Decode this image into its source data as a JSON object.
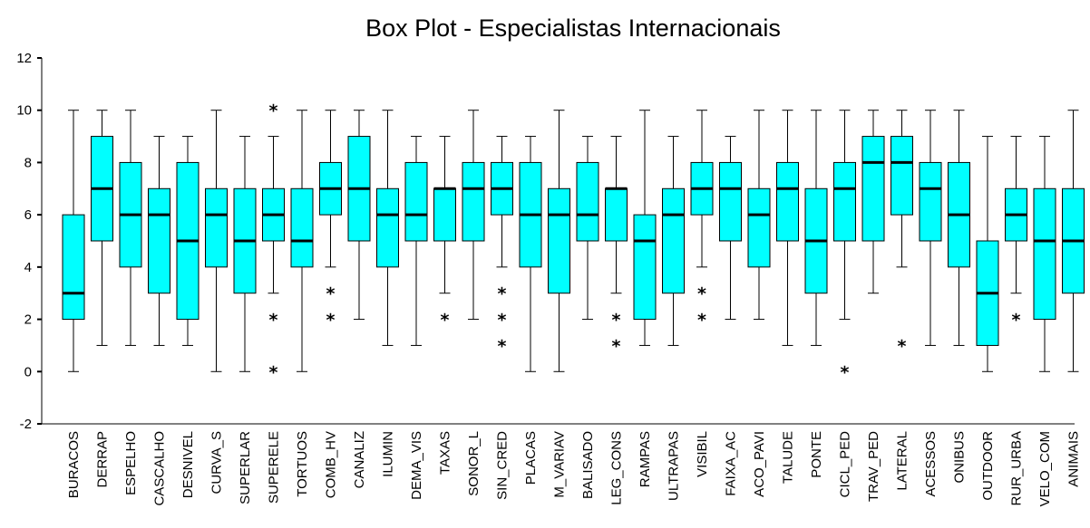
{
  "chart_data": {
    "type": "box",
    "title": "Box Plot - Especialistas Internacionais",
    "xlabel": "",
    "ylabel": "",
    "ylim": [
      -2,
      12
    ],
    "yticks": [
      -2,
      0,
      2,
      4,
      6,
      8,
      10,
      12
    ],
    "grid": false,
    "legend": "none",
    "box_color": "#00ffff",
    "outlier_marker": "*",
    "categories": [
      "BURACOS",
      "DERRAP",
      "ESPELHO",
      "CASCALHO",
      "DESNIVEL",
      "CURVA_S",
      "SUPERLAR",
      "SUPERELE",
      "TORTUOS",
      "COMB_HV",
      "CANALIZ",
      "ILUMIN",
      "DEMA_VIS",
      "TAXAS",
      "SONOR_L",
      "SIN_CRED",
      "PLACAS",
      "M_VARIAV",
      "BALISADO",
      "LEG_CONS",
      "RAMPAS",
      "ULTRAPAS",
      "VISIBIL",
      "FAIXA_AC",
      "ACO_PAVI",
      "TALUDE",
      "PONTE",
      "CICL_PED",
      "TRAV_PED",
      "LATERAL",
      "ACESSOS",
      "ONIBUS",
      "OUTDOOR",
      "RUR_URBA",
      "VELO_COM",
      "ANIMAIS"
    ],
    "boxes": [
      {
        "min": 0,
        "q1": 2,
        "median": 3,
        "q3": 6,
        "max": 10,
        "outliers": []
      },
      {
        "min": 1,
        "q1": 5,
        "median": 7,
        "q3": 9,
        "max": 10,
        "outliers": []
      },
      {
        "min": 1,
        "q1": 4,
        "median": 6,
        "q3": 8,
        "max": 10,
        "outliers": []
      },
      {
        "min": 1,
        "q1": 3,
        "median": 6,
        "q3": 7,
        "max": 9,
        "outliers": []
      },
      {
        "min": 1,
        "q1": 2,
        "median": 5,
        "q3": 8,
        "max": 9,
        "outliers": []
      },
      {
        "min": 0,
        "q1": 4,
        "median": 6,
        "q3": 7,
        "max": 10,
        "outliers": []
      },
      {
        "min": 0,
        "q1": 3,
        "median": 5,
        "q3": 7,
        "max": 9,
        "outliers": []
      },
      {
        "min": 3,
        "q1": 5,
        "median": 6,
        "q3": 7,
        "max": 9,
        "outliers": [
          10,
          2,
          0
        ]
      },
      {
        "min": 0,
        "q1": 4,
        "median": 5,
        "q3": 7,
        "max": 10,
        "outliers": []
      },
      {
        "min": 4,
        "q1": 6,
        "median": 7,
        "q3": 8,
        "max": 10,
        "outliers": [
          3,
          2
        ]
      },
      {
        "min": 2,
        "q1": 5,
        "median": 7,
        "q3": 9,
        "max": 10,
        "outliers": []
      },
      {
        "min": 1,
        "q1": 4,
        "median": 6,
        "q3": 7,
        "max": 10,
        "outliers": []
      },
      {
        "min": 1,
        "q1": 5,
        "median": 6,
        "q3": 8,
        "max": 9,
        "outliers": []
      },
      {
        "min": 3,
        "q1": 5,
        "median": 7,
        "q3": 7,
        "max": 9,
        "outliers": [
          2
        ]
      },
      {
        "min": 2,
        "q1": 5,
        "median": 7,
        "q3": 8,
        "max": 10,
        "outliers": []
      },
      {
        "min": 4,
        "q1": 6,
        "median": 7,
        "q3": 8,
        "max": 9,
        "outliers": [
          3,
          2,
          1
        ]
      },
      {
        "min": 0,
        "q1": 4,
        "median": 6,
        "q3": 8,
        "max": 9,
        "outliers": []
      },
      {
        "min": 0,
        "q1": 3,
        "median": 6,
        "q3": 7,
        "max": 10,
        "outliers": []
      },
      {
        "min": 2,
        "q1": 5,
        "median": 6,
        "q3": 8,
        "max": 9,
        "outliers": []
      },
      {
        "min": 3,
        "q1": 5,
        "median": 7,
        "q3": 7,
        "max": 9,
        "outliers": [
          2,
          1
        ]
      },
      {
        "min": 1,
        "q1": 2,
        "median": 5,
        "q3": 6,
        "max": 10,
        "outliers": []
      },
      {
        "min": 1,
        "q1": 3,
        "median": 6,
        "q3": 7,
        "max": 9,
        "outliers": []
      },
      {
        "min": 4,
        "q1": 6,
        "median": 7,
        "q3": 8,
        "max": 10,
        "outliers": [
          3,
          2
        ]
      },
      {
        "min": 2,
        "q1": 5,
        "median": 7,
        "q3": 8,
        "max": 9,
        "outliers": []
      },
      {
        "min": 2,
        "q1": 4,
        "median": 6,
        "q3": 7,
        "max": 10,
        "outliers": []
      },
      {
        "min": 1,
        "q1": 5,
        "median": 7,
        "q3": 8,
        "max": 10,
        "outliers": []
      },
      {
        "min": 1,
        "q1": 3,
        "median": 5,
        "q3": 7,
        "max": 10,
        "outliers": []
      },
      {
        "min": 2,
        "q1": 5,
        "median": 7,
        "q3": 8,
        "max": 10,
        "outliers": [
          0
        ]
      },
      {
        "min": 3,
        "q1": 5,
        "median": 8,
        "q3": 9,
        "max": 10,
        "outliers": []
      },
      {
        "min": 4,
        "q1": 6,
        "median": 8,
        "q3": 9,
        "max": 10,
        "outliers": [
          1
        ]
      },
      {
        "min": 1,
        "q1": 5,
        "median": 7,
        "q3": 8,
        "max": 10,
        "outliers": []
      },
      {
        "min": 1,
        "q1": 4,
        "median": 6,
        "q3": 8,
        "max": 10,
        "outliers": []
      },
      {
        "min": 0,
        "q1": 1,
        "median": 3,
        "q3": 5,
        "max": 9,
        "outliers": []
      },
      {
        "min": 3,
        "q1": 5,
        "median": 6,
        "q3": 7,
        "max": 9,
        "outliers": [
          2
        ]
      },
      {
        "min": 0,
        "q1": 2,
        "median": 5,
        "q3": 7,
        "max": 9,
        "outliers": []
      },
      {
        "min": 0,
        "q1": 3,
        "median": 5,
        "q3": 7,
        "max": 10,
        "outliers": []
      }
    ]
  }
}
